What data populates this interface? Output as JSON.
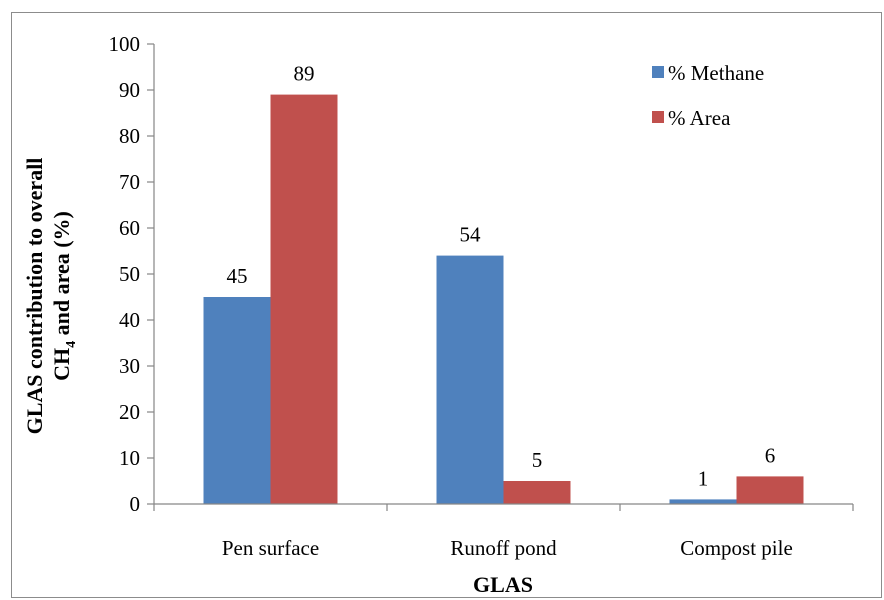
{
  "chart_data": {
    "type": "bar",
    "categories": [
      "Pen surface",
      "Runoff pond",
      "Compost pile"
    ],
    "series": [
      {
        "name": "% Methane",
        "color": "#4f81bd",
        "values": [
          45,
          54,
          1
        ]
      },
      {
        "name": "% Area",
        "color": "#c0504d",
        "values": [
          89,
          5,
          6
        ]
      }
    ],
    "xlabel": "GLAS",
    "ylabel_line1": "GLAS contribution to overall",
    "ylabel_line2_prefix": "CH",
    "ylabel_line2_sub": "4",
    "ylabel_line2_suffix": " and area (%)",
    "ylim": [
      0,
      100
    ],
    "yticks": [
      0,
      10,
      20,
      30,
      40,
      50,
      60,
      70,
      80,
      90,
      100
    ],
    "grid": false,
    "legend_position": "top-right"
  }
}
